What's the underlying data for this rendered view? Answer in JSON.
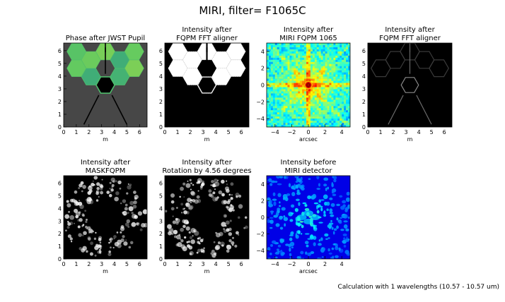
{
  "figure": {
    "title": "MIRI, filter= F1065C",
    "footnote": "Calculation with 1 wavelengths (10.57 - 10.57 um)"
  },
  "chart_data": [
    {
      "type": "heatmap",
      "title_lines": [
        "Phase after JWST Pupil"
      ],
      "xlabel": "m",
      "ylabel": "",
      "xlim": [
        0,
        6.6
      ],
      "ylim": [
        0,
        6.6
      ],
      "xticks": [
        0,
        1,
        2,
        3,
        4,
        5,
        6
      ],
      "yticks": [
        0,
        1,
        2,
        3,
        4,
        5,
        6
      ],
      "content": "pupil-phase",
      "colormap": "viridis"
    },
    {
      "type": "heatmap",
      "title_lines": [
        "Intensity after",
        "FQPM FFT aligner"
      ],
      "xlabel": "m",
      "ylabel": "",
      "xlim": [
        0,
        6.6
      ],
      "ylim": [
        0,
        6.6
      ],
      "xticks": [
        0,
        1,
        2,
        3,
        4,
        5,
        6
      ],
      "yticks": [
        0,
        1,
        2,
        3,
        4,
        5,
        6
      ],
      "content": "pupil-intensity",
      "colormap": "gray"
    },
    {
      "type": "heatmap",
      "title_lines": [
        "Intensity after",
        "MIRI FQPM 1065"
      ],
      "xlabel": "arcsec",
      "ylabel": "",
      "xlim": [
        -5,
        5
      ],
      "ylim": [
        -5,
        5
      ],
      "xticks": [
        -4,
        -2,
        0,
        2,
        4
      ],
      "yticks": [
        -4,
        -2,
        0,
        2,
        4
      ],
      "content": "psf",
      "colormap": "jet"
    },
    {
      "type": "heatmap",
      "title_lines": [
        "Intensity after",
        "FQPM FFT aligner"
      ],
      "xlabel": "m",
      "ylabel": "",
      "xlim": [
        0,
        6.6
      ],
      "ylim": [
        0,
        6.6
      ],
      "xticks": [
        0,
        1,
        2,
        3,
        4,
        5,
        6
      ],
      "yticks": [
        0,
        1,
        2,
        3,
        4,
        5,
        6
      ],
      "content": "pupil-edges",
      "colormap": "gray"
    },
    {
      "type": "heatmap",
      "title_lines": [
        "Intensity after",
        "MASKFQPM"
      ],
      "xlabel": "m",
      "ylabel": "",
      "xlim": [
        0,
        6.6
      ],
      "ylim": [
        0,
        6.6
      ],
      "xticks": [
        0,
        1,
        2,
        3,
        4,
        5,
        6
      ],
      "yticks": [
        0,
        1,
        2,
        3,
        4,
        5,
        6
      ],
      "content": "lyot-residual",
      "colormap": "gray"
    },
    {
      "type": "heatmap",
      "title_lines": [
        "Intensity after",
        "Rotation by 4.56 degrees"
      ],
      "xlabel": "m",
      "ylabel": "",
      "xlim": [
        0,
        6.6
      ],
      "ylim": [
        0,
        6.6
      ],
      "xticks": [
        0,
        1,
        2,
        3,
        4,
        5,
        6
      ],
      "yticks": [
        0,
        1,
        2,
        3,
        4,
        5,
        6
      ],
      "content": "lyot-residual",
      "colormap": "gray"
    },
    {
      "type": "heatmap",
      "title_lines": [
        "Intensity before",
        "MIRI detector"
      ],
      "xlabel": "arcsec",
      "ylabel": "",
      "xlim": [
        -5,
        5
      ],
      "ylim": [
        -5,
        5
      ],
      "xticks": [
        -4,
        -2,
        0,
        2,
        4
      ],
      "yticks": [
        -4,
        -2,
        0,
        2,
        4
      ],
      "content": "coronagraphic-psf",
      "colormap": "jet"
    }
  ]
}
